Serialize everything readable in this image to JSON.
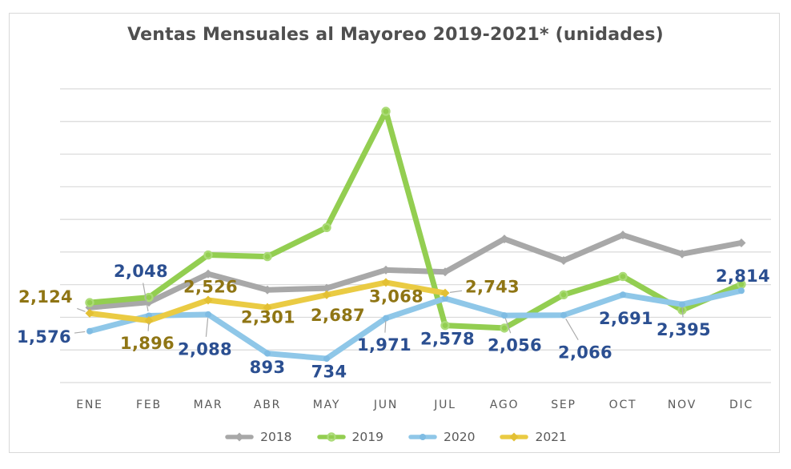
{
  "title": "Ventas Mensuales al Mayoreo 2019-2021* (unidades)",
  "colors": {
    "gridline": "#D9D9D9",
    "frame_border": "#D9D9D9",
    "title_text": "#4F4F4F",
    "axis_text": "#595959",
    "legend_text": "#595959",
    "leader_line": "#ABABAB",
    "label_2020": "#2B4F91",
    "label_2021": "#8F7514"
  },
  "chart_data": {
    "type": "line",
    "title": "Ventas Mensuales al Mayoreo 2019-2021* (unidades)",
    "categories": [
      "ENE",
      "FEB",
      "MAR",
      "ABR",
      "MAY",
      "JUN",
      "JUL",
      "AGO",
      "SEP",
      "OCT",
      "NOV",
      "DIC"
    ],
    "ylim": [
      0,
      9000
    ],
    "grid_step": 1000,
    "grid": "horizontal-only",
    "y_axis_labels_shown": false,
    "legend_position": "bottom",
    "series": [
      {
        "name": "2018",
        "color": "#A8A8A8",
        "marker": "diamond",
        "marker_color": "#A8A8A8",
        "values_estimated": true,
        "values": [
          2300,
          2460,
          3330,
          2840,
          2890,
          3450,
          3390,
          4400,
          3740,
          4520,
          3940,
          4280
        ],
        "labels": []
      },
      {
        "name": "2019",
        "color": "#93CE51",
        "marker": "open-circle",
        "marker_color": "#ABDB77",
        "values_estimated": true,
        "values": [
          2450,
          2610,
          3910,
          3860,
          4750,
          8310,
          1750,
          1670,
          2690,
          3250,
          2220,
          3010
        ],
        "labels": []
      },
      {
        "name": "2020",
        "color": "#8FC7E8",
        "marker": "circle",
        "marker_color": "#7FBCE3",
        "label_color": "#2B4F91",
        "values": [
          1576,
          2048,
          2088,
          893,
          734,
          1971,
          2578,
          2056,
          2066,
          2691,
          2395,
          2814
        ],
        "labels": [
          {
            "m": 0,
            "text": "1,576",
            "dx": -57,
            "dy": 7,
            "leader": true
          },
          {
            "m": 1,
            "text": "2,048",
            "dx": -10,
            "dy": -56,
            "leader": true
          },
          {
            "m": 2,
            "text": "2,088",
            "dx": -4,
            "dy": 43,
            "leader": true
          },
          {
            "m": 3,
            "text": "893",
            "dx": 0,
            "dy": 17,
            "leader": false
          },
          {
            "m": 4,
            "text": "734",
            "dx": 3,
            "dy": 16,
            "leader": false
          },
          {
            "m": 5,
            "text": "1,971",
            "dx": -2,
            "dy": 33,
            "leader": true
          },
          {
            "m": 6,
            "text": "2,578",
            "dx": 3,
            "dy": 50,
            "leader": false
          },
          {
            "m": 7,
            "text": "2,056",
            "dx": 13,
            "dy": 37,
            "leader": true
          },
          {
            "m": 8,
            "text": "2,066",
            "dx": 27,
            "dy": 46,
            "leader": true
          },
          {
            "m": 9,
            "text": "2,691",
            "dx": 4,
            "dy": 29,
            "leader": false
          },
          {
            "m": 10,
            "text": "2,395",
            "dx": 2,
            "dy": 31,
            "leader": true
          },
          {
            "m": 11,
            "text": "2,814",
            "dx": 2,
            "dy": -19,
            "leader": false
          }
        ]
      },
      {
        "name": "2021",
        "color": "#EACB43",
        "marker": "diamond",
        "marker_color": "#E3C034",
        "label_color": "#8F7514",
        "values": [
          2124,
          1896,
          2526,
          2301,
          2687,
          3068,
          2743,
          null,
          null,
          null,
          null,
          null
        ],
        "labels": [
          {
            "m": 0,
            "text": "2,124",
            "dx": -55,
            "dy": -21,
            "leader": true
          },
          {
            "m": 1,
            "text": "1,896",
            "dx": -2,
            "dy": 28,
            "leader": true
          },
          {
            "m": 2,
            "text": "2,526",
            "dx": 3,
            "dy": -17,
            "leader": false
          },
          {
            "m": 3,
            "text": "2,301",
            "dx": 1,
            "dy": 12,
            "leader": false
          },
          {
            "m": 4,
            "text": "2,687",
            "dx": 14,
            "dy": 25,
            "leader": false
          },
          {
            "m": 5,
            "text": "3,068",
            "dx": 13,
            "dy": 17,
            "leader": false
          },
          {
            "m": 6,
            "text": "2,743",
            "dx": 59,
            "dy": -8,
            "leader": true
          }
        ]
      }
    ]
  }
}
